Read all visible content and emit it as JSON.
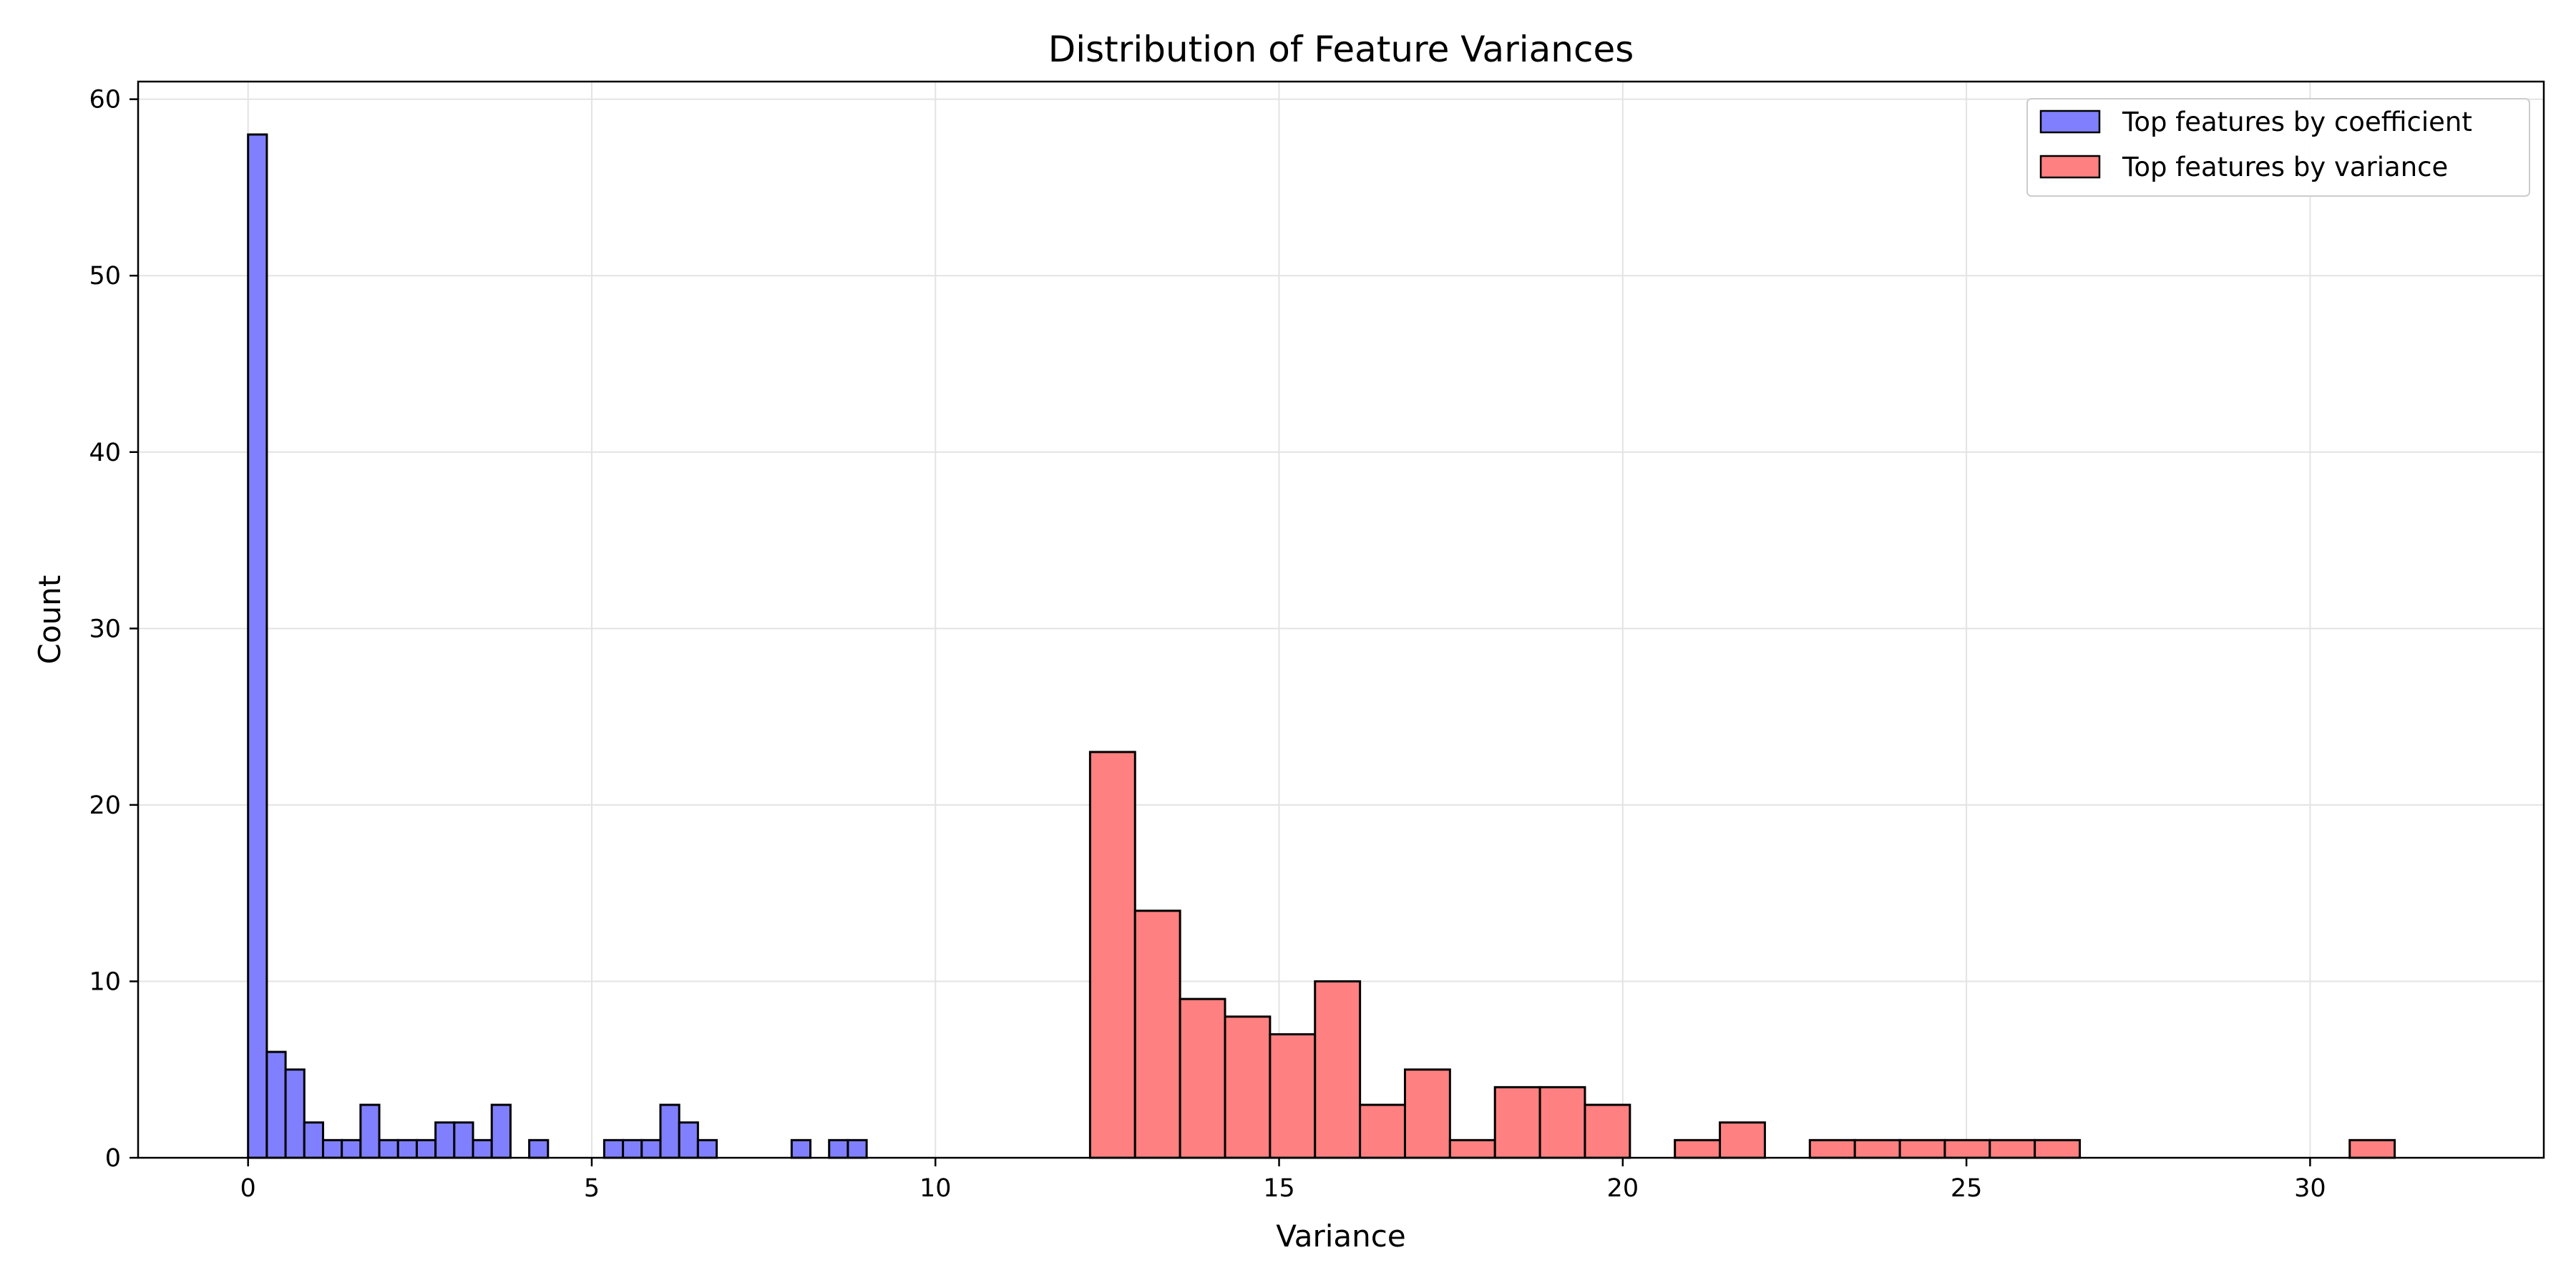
{
  "chart_data": {
    "type": "bar",
    "title": "Distribution of Feature Variances",
    "xlabel": "Variance",
    "ylabel": "Count",
    "xlim": [
      -1.6,
      33.4
    ],
    "ylim": [
      0,
      61
    ],
    "x_ticks": [
      0,
      5,
      10,
      15,
      20,
      25,
      30
    ],
    "y_ticks": [
      0,
      10,
      20,
      30,
      40,
      50,
      60
    ],
    "grid": true,
    "legend_position": "top-right",
    "series": [
      {
        "name": "Top features by coefficient",
        "color": "#8080ff",
        "bin_width": 0.2727,
        "bin_start": 0,
        "counts": [
          58,
          6,
          5,
          2,
          1,
          1,
          3,
          1,
          1,
          1,
          2,
          2,
          1,
          3,
          0,
          1,
          0,
          0,
          0,
          1,
          1,
          1,
          3,
          2,
          1,
          0,
          0,
          0,
          0,
          1,
          0,
          1,
          1
        ]
      },
      {
        "name": "Top features by variance",
        "color": "#ff8080",
        "bin_width": 0.6545,
        "bin_start": 12.25,
        "counts": [
          23,
          14,
          9,
          8,
          7,
          10,
          3,
          5,
          1,
          4,
          4,
          3,
          0,
          1,
          2,
          0,
          1,
          1,
          1,
          1,
          1,
          1,
          0,
          0,
          0,
          0,
          0,
          0,
          1
        ]
      }
    ]
  }
}
